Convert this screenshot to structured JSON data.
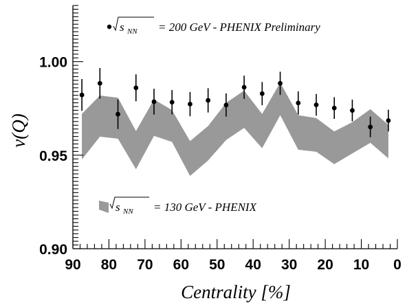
{
  "chart_data": {
    "type": "scatter",
    "xlabel": "Centrality [%]",
    "ylabel": "v(Q)",
    "xlim": [
      90,
      0
    ],
    "ylim": [
      0.9,
      1.03
    ],
    "x_ticks": [
      "90",
      "80",
      "70",
      "60",
      "50",
      "40",
      "30",
      "20",
      "10",
      "0"
    ],
    "y_ticks": [
      "0.90",
      "0.95",
      "1.00"
    ],
    "grid": false,
    "series": [
      {
        "name": "√s_NN = 200 GeV - PHENIX Preliminary",
        "kind": "points_with_errors",
        "color": "#000000",
        "x": [
          87.5,
          82.5,
          77.5,
          72.5,
          67.5,
          62.5,
          57.5,
          52.5,
          47.5,
          42.5,
          37.5,
          32.5,
          27.5,
          22.5,
          17.5,
          12.5,
          7.5,
          2.5
        ],
        "y": [
          0.9822,
          0.9884,
          0.9719,
          0.986,
          0.9786,
          0.9783,
          0.9773,
          0.9793,
          0.9768,
          0.9863,
          0.9829,
          0.9884,
          0.9779,
          0.9769,
          0.9752,
          0.9739,
          0.9651,
          0.9685
        ],
        "err": [
          0.0085,
          0.0082,
          0.0079,
          0.0072,
          0.0069,
          0.0065,
          0.0065,
          0.0065,
          0.0062,
          0.0062,
          0.0062,
          0.0062,
          0.0062,
          0.0058,
          0.0058,
          0.0058,
          0.0055,
          0.0058
        ]
      },
      {
        "name": "√s_NN = 130 GeV - PHENIX",
        "kind": "band",
        "color": "#999999",
        "x": [
          87.5,
          82.5,
          77.5,
          72.5,
          67.5,
          62.5,
          57.5,
          52.5,
          47.5,
          42.5,
          37.5,
          32.5,
          27.5,
          22.5,
          17.5,
          12.5,
          7.5,
          2.5
        ],
        "y_low": [
          0.9477,
          0.9599,
          0.9588,
          0.9425,
          0.9603,
          0.9571,
          0.9389,
          0.9472,
          0.9581,
          0.9646,
          0.9537,
          0.9714,
          0.9529,
          0.9518,
          0.9452,
          0.9509,
          0.9566,
          0.9483
        ],
        "y_high": [
          0.9721,
          0.9819,
          0.9807,
          0.9629,
          0.9798,
          0.9741,
          0.9575,
          0.9656,
          0.978,
          0.9845,
          0.972,
          0.9888,
          0.9714,
          0.9698,
          0.9627,
          0.9676,
          0.9746,
          0.9662
        ]
      }
    ]
  },
  "legend": {
    "entry_200": {
      "prefix": "s",
      "sub": "NN",
      "rest": "= 200 GeV - PHENIX Preliminary"
    },
    "entry_130": {
      "prefix": "s",
      "sub": "NN",
      "rest": "= 130 GeV - PHENIX"
    }
  },
  "colors": {
    "band": "#999999",
    "points": "#000000",
    "axis": "#000000"
  }
}
